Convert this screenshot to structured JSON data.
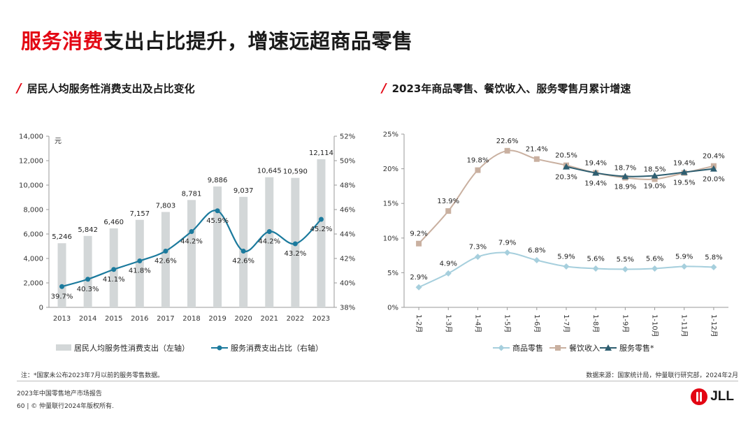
{
  "header": {
    "title_red": "服务消费",
    "title_rest": "支出占比提升，增速远超商品零售"
  },
  "left_section_title": "居民人均服务性消费支出及占比变化",
  "right_section_title": "2023年商品零售、餐饮收入、服务零售月累计增速",
  "footnote": "注：*国家未公布2023年7月以前的服务零售数据。",
  "source": "数据来源：国家统计局，仲量联行研究部，2024年2月",
  "footer": {
    "report": "2023年中国零售地产市场报告",
    "page": "60 | © 仲量联行2024年版权所有."
  },
  "logo_text": "JLL",
  "colors": {
    "bar": "#d3d7d8",
    "ratio_line": "#1b7a9d",
    "goods": "#a6cfdd",
    "catering": "#c9b0a0",
    "services": "#2e5e70",
    "accent": "#e30613"
  },
  "chart_data": [
    {
      "type": "bar",
      "categories": [
        "2013",
        "2014",
        "2015",
        "2016",
        "2017",
        "2018",
        "2019",
        "2020",
        "2021",
        "2022",
        "2023"
      ],
      "series": [
        {
          "name": "居民人均服务性消费支出（左轴）",
          "kind": "bar",
          "axis": "left",
          "values": [
            5246,
            5842,
            6460,
            7157,
            7803,
            8781,
            9886,
            9037,
            10645,
            10590,
            12114
          ],
          "labels": [
            "5,246",
            "5,842",
            "6,460",
            "7,157",
            "7,803",
            "8,781",
            "9,886",
            "9,037",
            "10,645",
            "10,590",
            "12,114"
          ]
        },
        {
          "name": "服务消费支出占比（右轴）",
          "kind": "line",
          "axis": "right",
          "values": [
            39.7,
            40.3,
            41.1,
            41.8,
            42.6,
            44.2,
            45.9,
            42.6,
            44.2,
            43.2,
            45.2
          ],
          "labels": [
            "39.7%",
            "40.3%",
            "41.1%",
            "41.8%",
            "42.6%",
            "44.2%",
            "45.9%",
            "42.6%",
            "44.2%",
            "43.2%",
            "45.2%"
          ]
        }
      ],
      "ylabel": "元",
      "ylim": [
        0,
        14000
      ],
      "yticks": [
        "0",
        "2,000",
        "4,000",
        "6,000",
        "8,000",
        "10,000",
        "12,000",
        "14,000"
      ],
      "y2lim": [
        38,
        52
      ],
      "y2ticks": [
        "38%",
        "40%",
        "42%",
        "44%",
        "46%",
        "48%",
        "50%",
        "52%"
      ],
      "legend_position": "bottom"
    },
    {
      "type": "line",
      "categories": [
        "1-2月",
        "1-3月",
        "1-4月",
        "1-5月",
        "1-6月",
        "1-7月",
        "1-8月",
        "1-9月",
        "1-10月",
        "1-11月",
        "1-12月"
      ],
      "series": [
        {
          "name": "商品零售",
          "values": [
            2.9,
            4.9,
            7.3,
            7.9,
            6.8,
            5.9,
            5.6,
            5.5,
            5.6,
            5.9,
            5.8
          ],
          "labels": [
            "2.9%",
            "4.9%",
            "7.3%",
            "7.9%",
            "6.8%",
            "5.9%",
            "5.6%",
            "5.5%",
            "5.6%",
            "5.9%",
            "5.8%"
          ]
        },
        {
          "name": "餐饮收入",
          "values": [
            9.2,
            13.9,
            19.8,
            22.6,
            21.4,
            20.5,
            19.4,
            18.7,
            18.5,
            19.4,
            20.4
          ],
          "labels": [
            "9.2%",
            "13.9%",
            "19.8%",
            "22.6%",
            "21.4%",
            "20.5%",
            "19.4%",
            "18.7%",
            "18.5%",
            "19.4%",
            "20.4%"
          ]
        },
        {
          "name": "服务零售*",
          "values": [
            null,
            null,
            null,
            null,
            null,
            20.3,
            19.4,
            18.9,
            19.0,
            19.5,
            20.0
          ],
          "labels": [
            "",
            "",
            "",
            "",
            "",
            "20.3%",
            "19.4%",
            "18.9%",
            "19.0%",
            "19.5%",
            "20.0%"
          ]
        }
      ],
      "ylim": [
        0,
        25
      ],
      "yticks": [
        "0%",
        "5%",
        "10%",
        "15%",
        "20%",
        "25%"
      ],
      "legend_position": "bottom"
    }
  ]
}
